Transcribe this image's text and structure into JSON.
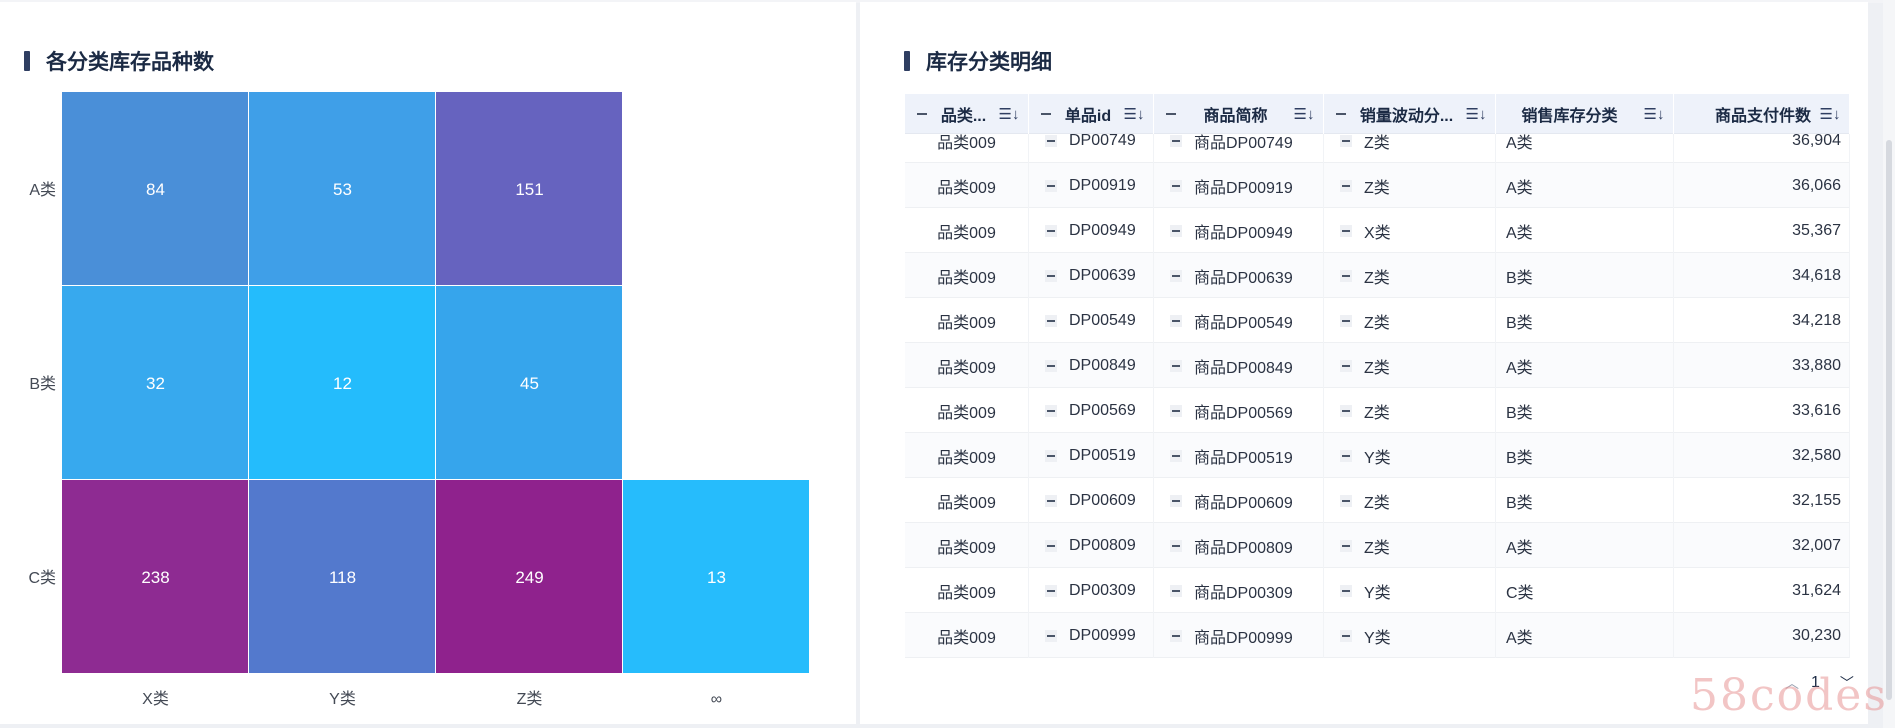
{
  "left_panel": {
    "title": "各分类库存品种数"
  },
  "right_panel": {
    "title": "库存分类明细"
  },
  "chart_data": {
    "type": "heatmap",
    "x_categories": [
      "X类",
      "Y类",
      "Z类",
      "∞"
    ],
    "y_categories": [
      "A类",
      "B类",
      "C类"
    ],
    "cells": [
      {
        "y": "A类",
        "x": "X类",
        "value": 84,
        "color": "#4a8fd8"
      },
      {
        "y": "A类",
        "x": "Y类",
        "value": 53,
        "color": "#3f9fe8"
      },
      {
        "y": "A类",
        "x": "Z类",
        "value": 151,
        "color": "#6663bf"
      },
      {
        "y": "B类",
        "x": "X类",
        "value": 32,
        "color": "#37a9ee"
      },
      {
        "y": "B类",
        "x": "Y类",
        "value": 12,
        "color": "#24bcfc"
      },
      {
        "y": "B类",
        "x": "Z类",
        "value": 45,
        "color": "#36a5ec"
      },
      {
        "y": "C类",
        "x": "X类",
        "value": 238,
        "color": "#8e2b92"
      },
      {
        "y": "C类",
        "x": "Y类",
        "value": 118,
        "color": "#5379cd"
      },
      {
        "y": "C类",
        "x": "Z类",
        "value": 249,
        "color": "#8f228d"
      },
      {
        "y": "C类",
        "x": "∞",
        "value": 13,
        "color": "#26bcfc"
      }
    ]
  },
  "table": {
    "columns": [
      {
        "label": "品类...",
        "sort_icon": "sort-desc-icon"
      },
      {
        "label": "单品id",
        "sort_icon": "sort-desc-icon"
      },
      {
        "label": "商品简称",
        "sort_icon": "sort-desc-icon"
      },
      {
        "label": "销量波动分...",
        "sort_icon": "sort-desc-icon"
      },
      {
        "label": "销售库存分类",
        "sort_icon": "sort-desc-icon"
      },
      {
        "label": "商品支付件数",
        "sort_icon": "sort-desc-icon"
      }
    ],
    "rows": [
      {
        "category": "品类009",
        "id": "DP00749",
        "name": "商品DP00749",
        "volatility": "Z类",
        "stock_class": "A类",
        "qty": "36,904"
      },
      {
        "category": "品类009",
        "id": "DP00919",
        "name": "商品DP00919",
        "volatility": "Z类",
        "stock_class": "A类",
        "qty": "36,066"
      },
      {
        "category": "品类009",
        "id": "DP00949",
        "name": "商品DP00949",
        "volatility": "X类",
        "stock_class": "A类",
        "qty": "35,367"
      },
      {
        "category": "品类009",
        "id": "DP00639",
        "name": "商品DP00639",
        "volatility": "Z类",
        "stock_class": "B类",
        "qty": "34,618"
      },
      {
        "category": "品类009",
        "id": "DP00549",
        "name": "商品DP00549",
        "volatility": "Z类",
        "stock_class": "B类",
        "qty": "34,218"
      },
      {
        "category": "品类009",
        "id": "DP00849",
        "name": "商品DP00849",
        "volatility": "Z类",
        "stock_class": "A类",
        "qty": "33,880"
      },
      {
        "category": "品类009",
        "id": "DP00569",
        "name": "商品DP00569",
        "volatility": "Z类",
        "stock_class": "B类",
        "qty": "33,616"
      },
      {
        "category": "品类009",
        "id": "DP00519",
        "name": "商品DP00519",
        "volatility": "Y类",
        "stock_class": "B类",
        "qty": "32,580"
      },
      {
        "category": "品类009",
        "id": "DP00609",
        "name": "商品DP00609",
        "volatility": "Z类",
        "stock_class": "B类",
        "qty": "32,155"
      },
      {
        "category": "品类009",
        "id": "DP00809",
        "name": "商品DP00809",
        "volatility": "Z类",
        "stock_class": "A类",
        "qty": "32,007"
      },
      {
        "category": "品类009",
        "id": "DP00309",
        "name": "商品DP00309",
        "volatility": "Y类",
        "stock_class": "C类",
        "qty": "31,624"
      },
      {
        "category": "品类009",
        "id": "DP00999",
        "name": "商品DP00999",
        "volatility": "Y类",
        "stock_class": "A类",
        "qty": "30,230"
      }
    ]
  },
  "pagination": {
    "page": "1",
    "up_icon": "chevron-up-icon",
    "dropdown_icon": "chevron-down-icon"
  },
  "watermark": "58codes"
}
